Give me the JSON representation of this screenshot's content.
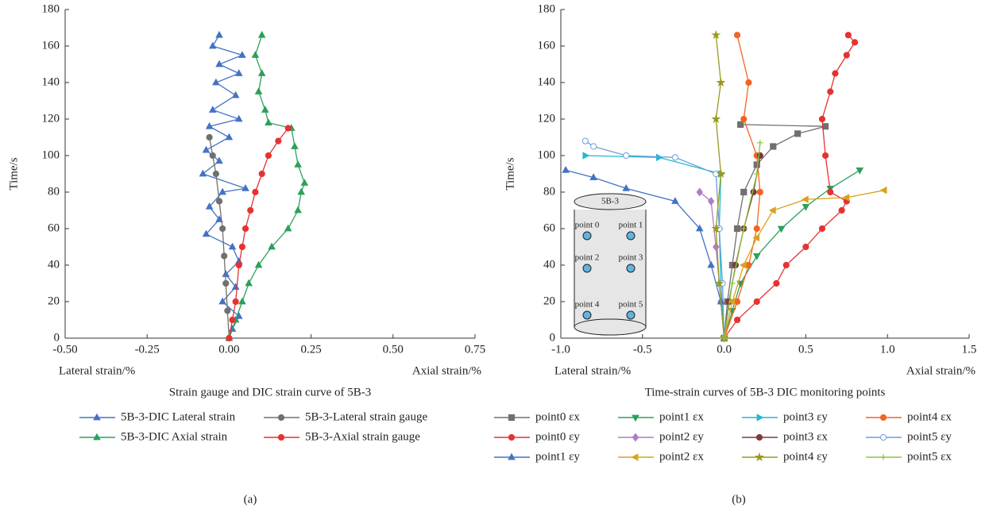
{
  "chart_data": [
    {
      "type": "line",
      "y_label": "Time/s",
      "x_label_left": "Lateral strain/%",
      "x_label_right": "Axial strain/%",
      "title": "Strain gauge and DIC strain curve of 5B-3",
      "caption": "(a)",
      "xlim": [
        -0.5,
        0.75
      ],
      "xticks": [
        {
          "value": -0.5,
          "label": "-0.50"
        },
        {
          "value": -0.25,
          "label": "-0.25"
        },
        {
          "value": 0,
          "label": "0.00"
        },
        0.25,
        {
          "value": 0.5,
          "label": "0.50"
        },
        0.75
      ],
      "ylim": [
        0,
        180
      ],
      "yticks": [
        0,
        20,
        40,
        60,
        80,
        100,
        120,
        140,
        160,
        180
      ],
      "legend_columns": 2,
      "series": [
        {
          "name": "5B-3-DIC Lateral strain",
          "color": "#4472c4",
          "marker": "triangle",
          "x": [
            0,
            0.01,
            0.03,
            -0.02,
            0.02,
            -0.01,
            0.03,
            0.01,
            -0.07,
            -0.03,
            -0.06,
            -0.02,
            0.05,
            -0.08,
            -0.03,
            -0.07,
            0,
            -0.06,
            0.03,
            -0.05,
            0.02,
            -0.04,
            0.03,
            -0.03,
            0.04,
            -0.05,
            -0.03
          ],
          "y": [
            0,
            5,
            12,
            20,
            28,
            35,
            42,
            50,
            57,
            65,
            72,
            80,
            82,
            90,
            97,
            103,
            110,
            116,
            120,
            125,
            133,
            140,
            145,
            150,
            155,
            160,
            166
          ]
        },
        {
          "name": "5B-3-Lateral strain gauge",
          "color": "#707070",
          "marker": "circle",
          "x": [
            0,
            -0.005,
            -0.01,
            -0.015,
            -0.02,
            -0.03,
            -0.04,
            -0.05,
            -0.06
          ],
          "y": [
            0,
            15,
            30,
            45,
            60,
            75,
            90,
            100,
            110
          ]
        },
        {
          "name": "5B-3-DIC Axial strain",
          "color": "#2ca05a",
          "marker": "triangle",
          "x": [
            0,
            0.02,
            0.04,
            0.06,
            0.09,
            0.13,
            0.18,
            0.21,
            0.22,
            0.23,
            0.21,
            0.2,
            0.19,
            0.12,
            0.11,
            0.09,
            0.1,
            0.08,
            0.1
          ],
          "y": [
            0,
            10,
            20,
            30,
            40,
            50,
            60,
            70,
            80,
            85,
            95,
            105,
            115,
            118,
            125,
            135,
            145,
            155,
            166
          ]
        },
        {
          "name": "5B-3-Axial strain gauge",
          "color": "#e63232",
          "marker": "circle",
          "x": [
            0,
            0.01,
            0.02,
            0.03,
            0.04,
            0.05,
            0.065,
            0.08,
            0.1,
            0.12,
            0.15,
            0.18
          ],
          "y": [
            0,
            10,
            20,
            40,
            50,
            60,
            70,
            80,
            90,
            100,
            108,
            115
          ]
        }
      ]
    },
    {
      "type": "line",
      "y_label": "Time/s",
      "x_label_left": "Lateral strain/%",
      "x_label_right": "Axial strain/%",
      "title": "Time-strain curves of 5B-3 DIC monitoring points",
      "caption": "(b)",
      "xlim": [
        -1.0,
        1.5
      ],
      "xticks": [
        {
          "value": -1,
          "label": "-1.0"
        },
        {
          "value": -0.5,
          "label": "-0.5"
        },
        {
          "value": 0,
          "label": "0.0"
        },
        0.5,
        {
          "value": 1,
          "label": "1.0"
        },
        1.5
      ],
      "ylim": [
        0,
        180
      ],
      "yticks": [
        0,
        20,
        40,
        60,
        80,
        100,
        120,
        140,
        160,
        180
      ],
      "legend_columns": 4,
      "inset": {
        "title": "5B-3",
        "labels": [
          "point 0",
          "point 1",
          "point 2",
          "point 3",
          "point 4",
          "point 5"
        ]
      },
      "series": [
        {
          "name": "point0 εx",
          "color": "#707070",
          "marker": "square",
          "x": [
            0,
            0.02,
            0.05,
            0.08,
            0.12,
            0.2,
            0.3,
            0.45,
            0.62,
            0.1
          ],
          "y": [
            0,
            20,
            40,
            60,
            80,
            95,
            105,
            112,
            116,
            117
          ]
        },
        {
          "name": "point1 εx",
          "color": "#2ca05a",
          "marker": "tri-down",
          "x": [
            0,
            0.05,
            0.1,
            0.2,
            0.35,
            0.5,
            0.65,
            0.83
          ],
          "y": [
            0,
            15,
            30,
            45,
            60,
            72,
            82,
            92
          ]
        },
        {
          "name": "point3 εy",
          "color": "#22b8d0",
          "marker": "tri-right",
          "x": [
            0,
            -0.02,
            -0.03,
            -0.02,
            -0.4,
            -0.85
          ],
          "y": [
            0,
            30,
            60,
            90,
            99,
            100
          ]
        },
        {
          "name": "point4 εx",
          "color": "#f26522",
          "marker": "circle",
          "x": [
            0,
            0.08,
            0.15,
            0.2,
            0.22,
            0.2,
            0.12,
            0.15,
            0.08
          ],
          "y": [
            0,
            20,
            40,
            60,
            80,
            100,
            120,
            140,
            166
          ]
        },
        {
          "name": "point0 εy",
          "color": "#e63232",
          "marker": "circle",
          "x": [
            0,
            0.08,
            0.2,
            0.32,
            0.38,
            0.5,
            0.6,
            0.72,
            0.75,
            0.65,
            0.62,
            0.6,
            0.65,
            0.68,
            0.75,
            0.8,
            0.76
          ],
          "y": [
            0,
            10,
            20,
            30,
            40,
            50,
            60,
            70,
            75,
            80,
            100,
            120,
            135,
            145,
            155,
            162,
            166
          ]
        },
        {
          "name": "point2 εy",
          "color": "#b07cc6",
          "marker": "diamond",
          "x": [
            0,
            -0.02,
            -0.05,
            -0.08,
            -0.15
          ],
          "y": [
            0,
            20,
            50,
            75,
            80
          ]
        },
        {
          "name": "point3 εx",
          "color": "#7a3b3b",
          "marker": "circle",
          "x": [
            0,
            0.03,
            0.07,
            0.12,
            0.18,
            0.22
          ],
          "y": [
            0,
            20,
            40,
            60,
            80,
            100
          ]
        },
        {
          "name": "point5 εy",
          "color": "#6a9fd8",
          "marker": "open-circle",
          "x": [
            0,
            -0.01,
            -0.03,
            -0.05,
            -0.3,
            -0.6,
            -0.8,
            -0.85
          ],
          "y": [
            0,
            30,
            60,
            90,
            99,
            100,
            105,
            108
          ]
        },
        {
          "name": "point1 εy",
          "color": "#4472c4",
          "marker": "triangle",
          "x": [
            0,
            -0.02,
            -0.08,
            -0.15,
            -0.3,
            -0.6,
            -0.8,
            -0.97
          ],
          "y": [
            0,
            20,
            40,
            60,
            75,
            82,
            88,
            92
          ]
        },
        {
          "name": "point2 εx",
          "color": "#d9a21b",
          "marker": "tri-left",
          "x": [
            0,
            0.05,
            0.12,
            0.2,
            0.3,
            0.5,
            0.75,
            0.98
          ],
          "y": [
            0,
            20,
            40,
            55,
            70,
            76,
            77,
            81
          ]
        },
        {
          "name": "point4 εy",
          "color": "#9a9a20",
          "marker": "star",
          "x": [
            0,
            -0.03,
            -0.05,
            -0.02,
            -0.05,
            -0.02,
            -0.05
          ],
          "y": [
            0,
            30,
            60,
            90,
            120,
            140,
            166
          ]
        },
        {
          "name": "point5 εx",
          "color": "#8cc63f",
          "marker": "plus",
          "x": [
            0,
            0.05,
            0.12,
            0.2,
            0.22
          ],
          "y": [
            0,
            30,
            60,
            90,
            107
          ]
        }
      ]
    }
  ]
}
